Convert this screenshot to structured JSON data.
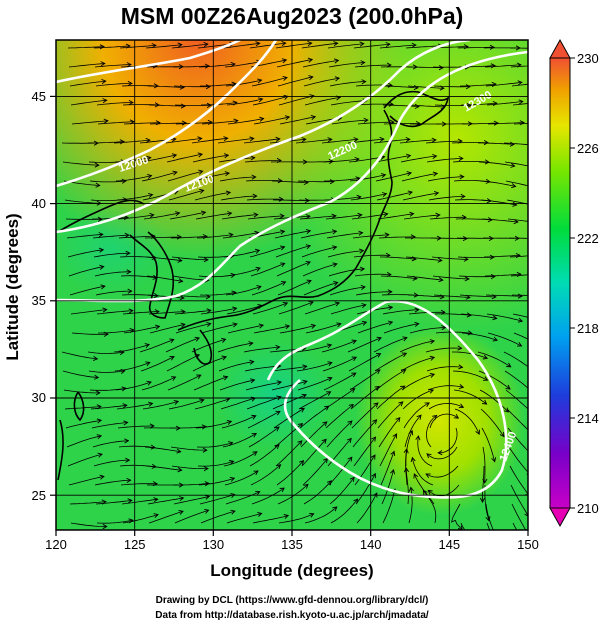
{
  "title": "MSM 00Z26Aug2023 (200.0hPa)",
  "x_axis": {
    "label": "Longitude (degrees)",
    "range": [
      120,
      150
    ],
    "ticks": [
      120,
      125,
      130,
      135,
      140,
      145,
      150
    ]
  },
  "y_axis": {
    "label": "Latitude  (degrees)",
    "range": [
      22.4,
      47.6
    ],
    "ticks": [
      25,
      30,
      35,
      40,
      45
    ]
  },
  "colorbar": {
    "range": [
      210,
      230
    ],
    "ticks": [
      210,
      214,
      218,
      222,
      226,
      230
    ]
  },
  "contour_labels": [
    "12000",
    "12100",
    "12200",
    "12300",
    "12400"
  ],
  "credits": [
    "Drawing by DCL (https://www.gfd-dennou.org/library/dcl/)",
    "Data from http://database.rish.kyoto-u.ac.jp/arch/jmadata/"
  ],
  "colors": {
    "background_field": "#2fd34a",
    "warm_max": "#e8501e",
    "cool_min": "#c800c8",
    "contour": "#ffffff",
    "streamline": "#000000"
  }
}
